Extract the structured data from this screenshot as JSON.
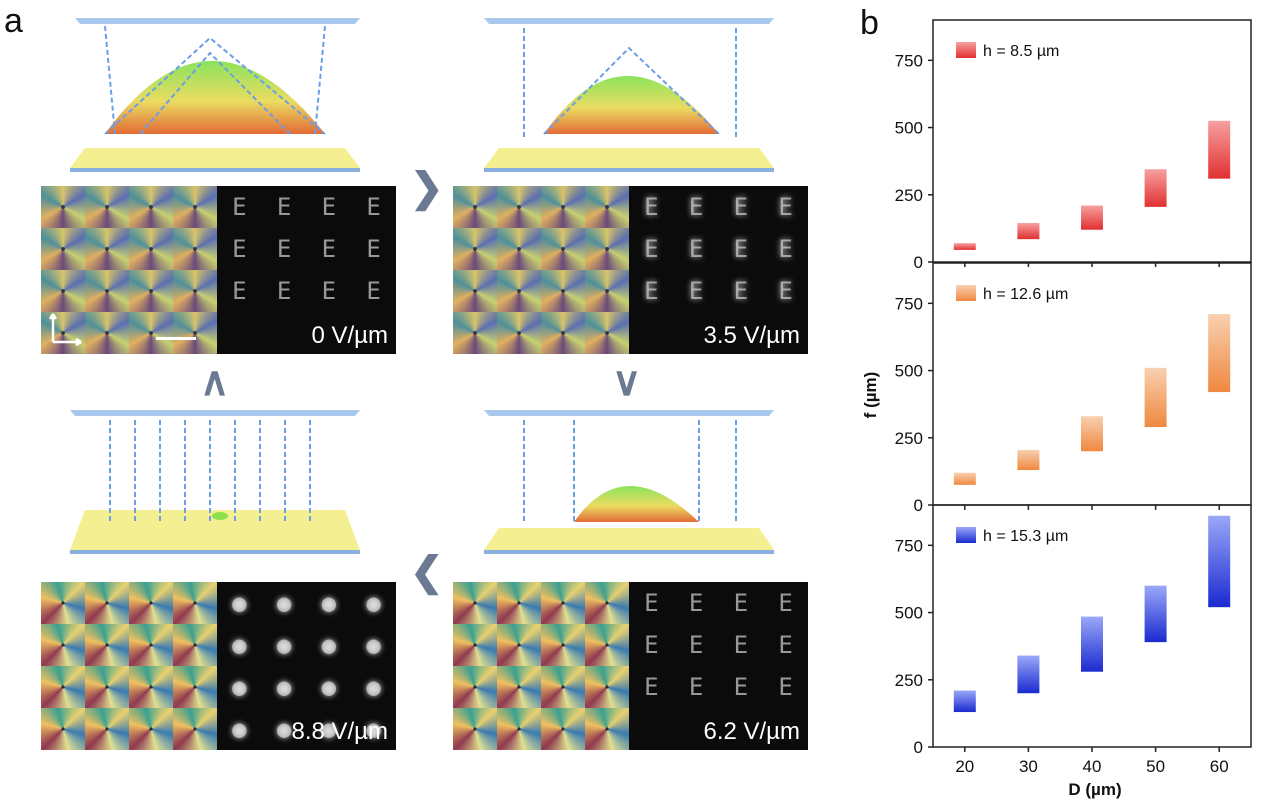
{
  "panel_a": {
    "label": "a",
    "states": [
      {
        "voltage_label": "0 V/µm",
        "lens": "large"
      },
      {
        "voltage_label": "3.5 V/µm",
        "lens": "medium"
      },
      {
        "voltage_label": "6.2 V/µm",
        "lens": "small"
      },
      {
        "voltage_label": "8.8 V/µm",
        "lens": "none"
      }
    ],
    "fluo_letter": "E",
    "arrows": {
      "right": "❯",
      "down": "∨",
      "left": "❮",
      "up": "∧"
    }
  },
  "chart_data": {
    "label": "b",
    "type": "floating-bar",
    "ylabel": "f (µm)",
    "xlabel": "D (µm)",
    "categories": [
      20,
      30,
      40,
      50,
      60
    ],
    "yticks": [
      0,
      250,
      500,
      750
    ],
    "ylim": [
      0,
      900
    ],
    "panels": [
      {
        "legend": "h = 8.5 µm",
        "color": "#e03030",
        "light": "#f8a0a0",
        "ranges": [
          [
            45,
            70
          ],
          [
            85,
            145
          ],
          [
            120,
            210
          ],
          [
            205,
            345
          ],
          [
            310,
            525
          ]
        ]
      },
      {
        "legend": "h = 12.6 µm",
        "color": "#f08840",
        "light": "#f8d0b0",
        "ranges": [
          [
            75,
            120
          ],
          [
            130,
            205
          ],
          [
            200,
            330
          ],
          [
            290,
            510
          ],
          [
            420,
            710
          ]
        ]
      },
      {
        "legend": "h = 15.3 µm",
        "color": "#1a2ad0",
        "light": "#9aa8f8",
        "ranges": [
          [
            130,
            210
          ],
          [
            200,
            340
          ],
          [
            280,
            485
          ],
          [
            390,
            600
          ],
          [
            520,
            860
          ]
        ]
      }
    ]
  }
}
